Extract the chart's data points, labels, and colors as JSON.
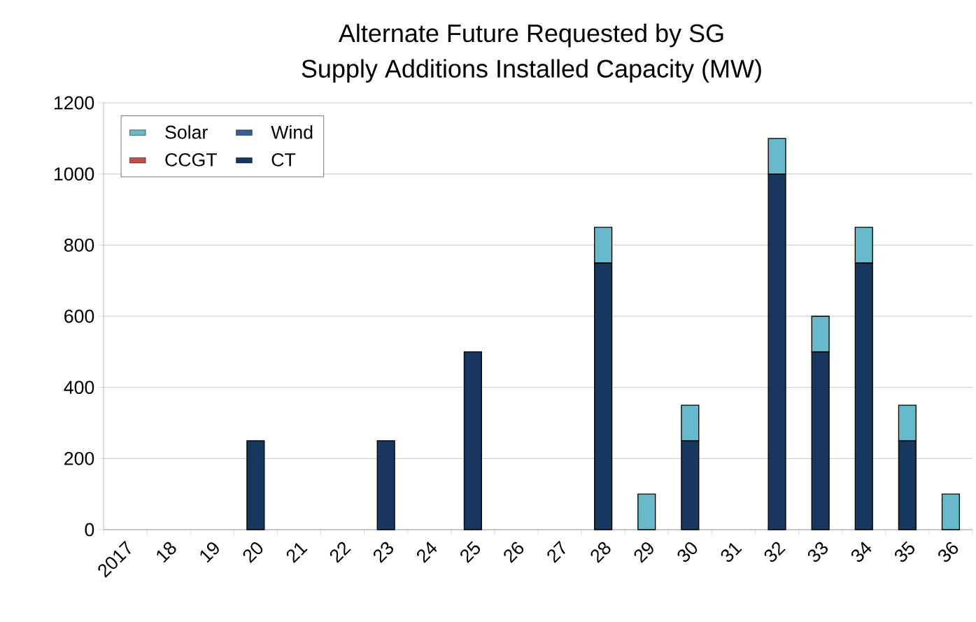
{
  "chart_data": {
    "type": "bar",
    "stacked": true,
    "title": "Alternate Future Requested by SG\nSupply Additions Installed Capacity (MW)",
    "categories": [
      "2017",
      "18",
      "19",
      "20",
      "21",
      "22",
      "23",
      "24",
      "25",
      "26",
      "27",
      "28",
      "29",
      "30",
      "31",
      "32",
      "33",
      "34",
      "35",
      "36"
    ],
    "series": [
      {
        "name": "CT",
        "color": "#17375e",
        "values": [
          0,
          0,
          0,
          250,
          0,
          0,
          250,
          0,
          500,
          0,
          0,
          750,
          0,
          250,
          0,
          1000,
          500,
          750,
          250,
          0
        ]
      },
      {
        "name": "CCGT",
        "color": "#c0504d",
        "values": [
          0,
          0,
          0,
          0,
          0,
          0,
          0,
          0,
          0,
          0,
          0,
          0,
          0,
          0,
          0,
          0,
          0,
          0,
          0,
          0
        ]
      },
      {
        "name": "Wind",
        "color": "#376092",
        "values": [
          0,
          0,
          0,
          0,
          0,
          0,
          0,
          0,
          0,
          0,
          0,
          0,
          0,
          0,
          0,
          0,
          0,
          0,
          0,
          0
        ]
      },
      {
        "name": "Solar",
        "color": "#67b9cc",
        "values": [
          0,
          0,
          0,
          0,
          0,
          0,
          0,
          0,
          0,
          0,
          0,
          100,
          100,
          100,
          0,
          100,
          100,
          100,
          100,
          100
        ]
      }
    ],
    "ylim": [
      0,
      1200
    ],
    "yticks": [
      0,
      200,
      400,
      600,
      800,
      1000,
      1200
    ],
    "grid": "y",
    "legend": "top left"
  }
}
